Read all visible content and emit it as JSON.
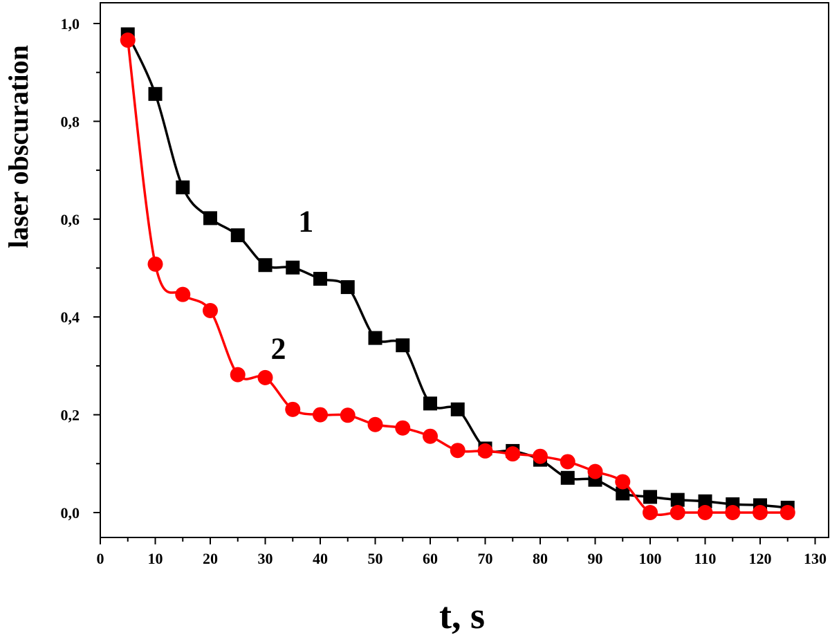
{
  "chart_data": {
    "type": "line",
    "title": "",
    "xlabel": "t, s",
    "ylabel": "laser obscuration",
    "xlim": [
      0,
      130
    ],
    "ylim": [
      -0.05,
      1.05
    ],
    "x_ticks": [
      0,
      10,
      20,
      30,
      40,
      50,
      60,
      70,
      80,
      90,
      100,
      110,
      120,
      130
    ],
    "x_tick_labels": [
      "0",
      "10",
      "20",
      "30",
      "40",
      "50",
      "60",
      "70",
      "80",
      "90",
      "100",
      "110",
      "120",
      "130"
    ],
    "y_ticks": [
      0.0,
      0.2,
      0.4,
      0.6,
      0.8,
      1.0
    ],
    "y_tick_labels": [
      "0,0",
      "0,2",
      "0,4",
      "0,6",
      "0,8",
      "1,0"
    ],
    "grid": false,
    "legend": "none",
    "series": [
      {
        "name": "1",
        "label_text": "1",
        "label_at": [
          36,
          0.575
        ],
        "color": "#000000",
        "marker": "square",
        "x": [
          5,
          10,
          15,
          20,
          25,
          30,
          35,
          40,
          45,
          50,
          55,
          60,
          65,
          70,
          75,
          80,
          85,
          90,
          95,
          100,
          105,
          110,
          115,
          120,
          125
        ],
        "y": [
          0.978,
          0.856,
          0.665,
          0.602,
          0.567,
          0.506,
          0.501,
          0.478,
          0.461,
          0.357,
          0.342,
          0.223,
          0.211,
          0.131,
          0.126,
          0.108,
          0.071,
          0.067,
          0.039,
          0.032,
          0.026,
          0.023,
          0.017,
          0.015,
          0.01
        ]
      },
      {
        "name": "2",
        "label_text": "2",
        "label_at": [
          31,
          0.315
        ],
        "color": "#ff0000",
        "marker": "circle",
        "x": [
          5,
          10,
          15,
          20,
          25,
          30,
          35,
          40,
          45,
          50,
          55,
          60,
          65,
          70,
          75,
          80,
          85,
          90,
          95,
          100,
          105,
          110,
          115,
          120,
          125
        ],
        "y": [
          0.966,
          0.508,
          0.446,
          0.413,
          0.282,
          0.276,
          0.211,
          0.2,
          0.199,
          0.18,
          0.173,
          0.156,
          0.127,
          0.126,
          0.12,
          0.115,
          0.104,
          0.084,
          0.063,
          0.0,
          0.0,
          0.0,
          0.0,
          0.0,
          0.0
        ]
      }
    ]
  }
}
